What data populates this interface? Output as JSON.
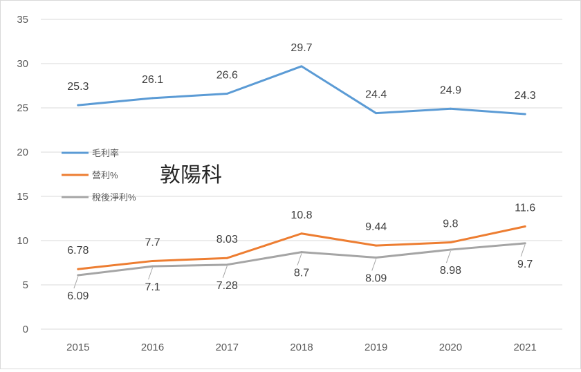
{
  "chart_data": {
    "type": "line",
    "title": "敦陽科",
    "categories": [
      "2015",
      "2016",
      "2017",
      "2018",
      "2019",
      "2020",
      "2021"
    ],
    "ylim": [
      0,
      35
    ],
    "yticks": [
      "0",
      "5",
      "10",
      "15",
      "20",
      "25",
      "30",
      "35"
    ],
    "grid": true,
    "legend_placement": "left-middle",
    "series": [
      {
        "name": "毛利率",
        "color": "#5b9bd5",
        "values": [
          25.3,
          26.1,
          26.6,
          29.7,
          24.4,
          24.9,
          24.3
        ],
        "labels": [
          "25.3",
          "26.1",
          "26.6",
          "29.7",
          "24.4",
          "24.9",
          "24.3"
        ]
      },
      {
        "name": "營利%",
        "color": "#ed7d31",
        "values": [
          6.78,
          7.7,
          8.03,
          10.8,
          9.44,
          9.8,
          11.6
        ],
        "labels": [
          "6.78",
          "7.7",
          "8.03",
          "10.8",
          "9.44",
          "9.8",
          "11.6"
        ]
      },
      {
        "name": "稅後淨利%",
        "color": "#a5a5a5",
        "values": [
          6.09,
          7.1,
          7.28,
          8.7,
          8.09,
          8.98,
          9.7
        ],
        "labels": [
          "6.09",
          "7.1",
          "7.28",
          "8.7",
          "8.09",
          "8.98",
          "9.7"
        ]
      }
    ]
  }
}
